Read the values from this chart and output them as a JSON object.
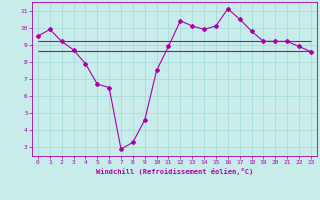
{
  "xlabel": "Windchill (Refroidissement éolien,°C)",
  "x_values": [
    0,
    1,
    2,
    3,
    4,
    5,
    6,
    7,
    8,
    9,
    10,
    11,
    12,
    13,
    14,
    15,
    16,
    17,
    18,
    19,
    20,
    21,
    22,
    23
  ],
  "y_line1": [
    9.5,
    9.9,
    9.2,
    8.7,
    7.9,
    6.7,
    6.5,
    2.9,
    3.3,
    4.6,
    7.5,
    8.9,
    10.4,
    10.1,
    9.9,
    10.1,
    11.1,
    10.5,
    9.8,
    9.2,
    9.2,
    9.2,
    8.9,
    8.6
  ],
  "hline1_y": 9.2,
  "hline1_x_start": 0,
  "hline1_x_end": 23,
  "hline2_y": 8.65,
  "hline2_x_start": 0,
  "hline2_x_end": 23,
  "line_color": "#aa00aa",
  "bg_color": "#c8ecea",
  "grid_color": "#a0d8d5",
  "ylim": [
    2.5,
    11.5
  ],
  "xlim": [
    -0.5,
    23.5
  ],
  "yticks": [
    3,
    4,
    5,
    6,
    7,
    8,
    9,
    10,
    11
  ],
  "xticks": [
    0,
    1,
    2,
    3,
    4,
    5,
    6,
    7,
    8,
    9,
    10,
    11,
    12,
    13,
    14,
    15,
    16,
    17,
    18,
    19,
    20,
    21,
    22,
    23
  ],
  "tick_fontsize": 4.5,
  "xlabel_fontsize": 5.0
}
